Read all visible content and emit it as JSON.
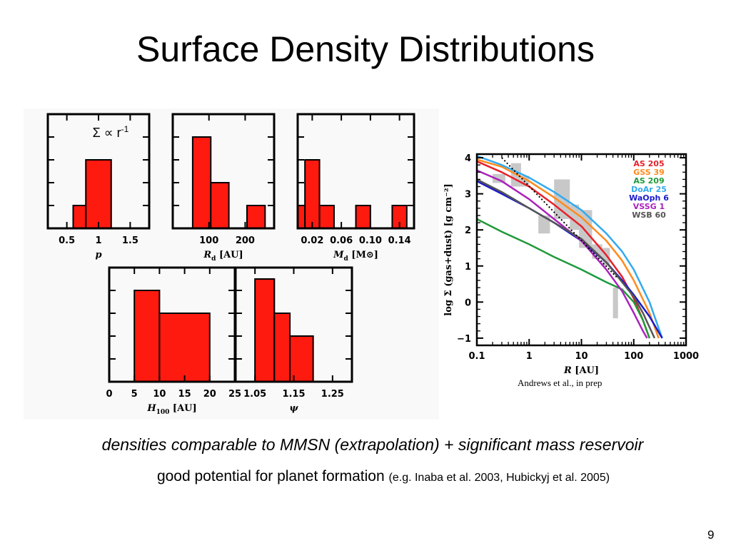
{
  "slide": {
    "title": "Surface Density Distributions",
    "caption": "Andrews et al., in prep",
    "line1": "densities comparable to MMSN (extrapolation) + significant mass reservoir",
    "line2_main": "good potential for planet formation",
    "line2_ref": "(e.g. Inaba et al. 2003, Hubickyj et al. 2005)",
    "page_number": "9"
  },
  "colors": {
    "hist_fill": "#ff1a10",
    "frame": "#000000",
    "shaded": "#c8c8c8"
  },
  "chart_data": [
    {
      "type": "bar",
      "subplot": "p",
      "annotation": "Σ ∝ r<sup>-1</sup>",
      "xlabel": "p",
      "xlim": [
        0.2,
        1.8
      ],
      "ylim": [
        0,
        5
      ],
      "xticks": [
        0.5,
        1,
        1.5
      ],
      "xtick_labels": [
        "0.5",
        "1",
        "1.5"
      ],
      "bins": [
        [
          0.6,
          0.8,
          1
        ],
        [
          0.8,
          1.2,
          3
        ]
      ]
    },
    {
      "type": "bar",
      "subplot": "Rd",
      "xlabel": "R_d [AU]",
      "xlabel_parts": [
        "R",
        "d",
        " [AU]"
      ],
      "xlim": [
        0,
        280
      ],
      "ylim": [
        0,
        5
      ],
      "xticks": [
        100,
        200
      ],
      "xtick_labels": [
        "100",
        "200"
      ],
      "bins": [
        [
          55,
          105,
          4
        ],
        [
          105,
          155,
          2
        ],
        [
          205,
          255,
          1
        ]
      ]
    },
    {
      "type": "bar",
      "subplot": "Md",
      "xlabel": "M_d [M⊙]",
      "xlabel_parts": [
        "M",
        "d",
        " [M⊙]"
      ],
      "xlim": [
        0,
        0.16
      ],
      "ylim": [
        0,
        5
      ],
      "xticks": [
        0.02,
        0.06,
        0.1,
        0.14
      ],
      "xtick_labels": [
        "0.02",
        "0.06",
        "0.10",
        "0.14"
      ],
      "bins": [
        [
          0.0,
          0.01,
          1
        ],
        [
          0.01,
          0.03,
          3
        ],
        [
          0.03,
          0.05,
          1
        ],
        [
          0.08,
          0.1,
          1
        ],
        [
          0.13,
          0.15,
          1
        ]
      ]
    },
    {
      "type": "bar",
      "subplot": "H100",
      "xlabel": "H_100 [AU]",
      "xlabel_parts": [
        "H",
        "100",
        " [AU]"
      ],
      "xlim": [
        0,
        25
      ],
      "ylim": [
        0,
        5
      ],
      "xticks": [
        0,
        5,
        10,
        15,
        20,
        25
      ],
      "xtick_labels": [
        "0",
        "5",
        "10",
        "15",
        "20",
        "25"
      ],
      "bins": [
        [
          5,
          10,
          4
        ],
        [
          10,
          20,
          3
        ]
      ]
    },
    {
      "type": "bar",
      "subplot": "psi",
      "xlabel": "ψ",
      "xlim": [
        1.0,
        1.3
      ],
      "ylim": [
        0,
        5
      ],
      "xticks": [
        1.05,
        1.15,
        1.25
      ],
      "xtick_labels": [
        "1.05",
        "1.15",
        "1.25"
      ],
      "bins": [
        [
          1.05,
          1.1,
          4.5
        ],
        [
          1.1,
          1.14,
          3
        ],
        [
          1.14,
          1.2,
          2
        ]
      ]
    },
    {
      "type": "line",
      "subplot": "profiles",
      "xlabel": "R [AU]",
      "xlabel_parts": [
        "R",
        " [AU]"
      ],
      "ylabel": "log Σ (gas+dust) [g cm⁻²]",
      "x_scale": "log",
      "xlim": [
        0.1,
        1000
      ],
      "ylim": [
        -1.2,
        4.1
      ],
      "xticks": [
        0.1,
        1,
        10,
        100,
        1000
      ],
      "xtick_labels": [
        "0.1",
        "1",
        "10",
        "100",
        "1000"
      ],
      "yticks": [
        -1,
        0,
        1,
        2,
        3,
        4
      ],
      "ytick_labels": [
        "−1",
        "0",
        "1",
        "2",
        "3",
        "4"
      ],
      "legend_position": "top-right",
      "series": [
        {
          "name": "AS 205",
          "color": "#e8202a",
          "x": [
            0.1,
            0.3,
            1,
            3,
            10,
            30,
            60,
            100,
            150,
            200
          ],
          "y": [
            3.9,
            3.6,
            3.2,
            2.7,
            2.1,
            1.3,
            0.7,
            0.1,
            -0.5,
            -1.0
          ]
        },
        {
          "name": "GSS 39",
          "color": "#ff8a1e",
          "x": [
            0.1,
            0.3,
            1,
            3,
            10,
            30,
            60,
            100,
            200,
            300
          ],
          "y": [
            3.95,
            3.75,
            3.35,
            2.9,
            2.35,
            1.7,
            1.15,
            0.6,
            -0.3,
            -1.0
          ]
        },
        {
          "name": "AS 209",
          "color": "#1e9a3a",
          "x": [
            0.1,
            0.3,
            1,
            3,
            10,
            30,
            60,
            100,
            150,
            200
          ],
          "y": [
            2.3,
            1.95,
            1.6,
            1.25,
            0.9,
            0.55,
            0.35,
            0.0,
            -0.5,
            -1.0
          ]
        },
        {
          "name": "DoAr 25",
          "color": "#33aaee",
          "x": [
            0.1,
            0.3,
            1,
            3,
            10,
            30,
            60,
            100,
            200,
            350
          ],
          "y": [
            4.05,
            3.8,
            3.45,
            3.05,
            2.55,
            1.9,
            1.4,
            0.9,
            0.0,
            -1.0
          ]
        },
        {
          "name": "WaOph 6",
          "color": "#1a1acc",
          "x": [
            0.1,
            0.3,
            1,
            3,
            10,
            30,
            60,
            100,
            200,
            350
          ],
          "y": [
            3.35,
            3.0,
            2.6,
            2.2,
            1.7,
            1.1,
            0.6,
            0.2,
            -0.4,
            -1.0
          ]
        },
        {
          "name": "VSSG 1",
          "color": "#aa22bb",
          "x": [
            0.1,
            0.3,
            1,
            3,
            10,
            30,
            60,
            100,
            150,
            180
          ],
          "y": [
            3.65,
            3.35,
            2.85,
            2.3,
            1.7,
            0.9,
            0.3,
            -0.3,
            -0.8,
            -1.0
          ]
        },
        {
          "name": "WSB 60",
          "color": "#555555",
          "x": [
            0.1,
            0.3,
            1,
            3,
            10,
            30,
            60,
            100,
            150,
            250
          ],
          "y": [
            3.4,
            3.05,
            2.6,
            2.2,
            1.75,
            1.1,
            0.55,
            0.15,
            -0.3,
            -1.0
          ]
        }
      ],
      "mmsn_reference": {
        "style": "dotted",
        "x": [
          0.3,
          50
        ],
        "y": [
          4.0,
          0.65
        ]
      },
      "shaded_histogram": [
        {
          "x": [
            0.2,
            0.35
          ],
          "y": [
            3.3,
            3.55
          ]
        },
        {
          "x": [
            0.45,
            0.7
          ],
          "y": [
            3.2,
            3.85
          ]
        },
        {
          "x": [
            0.7,
            1.0
          ],
          "y": [
            3.2,
            3.5
          ]
        },
        {
          "x": [
            1.5,
            2.5
          ],
          "y": [
            1.9,
            2.4
          ]
        },
        {
          "x": [
            3.0,
            6.0
          ],
          "y": [
            2.3,
            3.4
          ]
        },
        {
          "x": [
            6.0,
            9.0
          ],
          "y": [
            2.0,
            2.7
          ]
        },
        {
          "x": [
            9.0,
            16.0
          ],
          "y": [
            1.5,
            2.55
          ]
        },
        {
          "x": [
            16.0,
            25.0
          ],
          "y": [
            1.2,
            1.6
          ]
        },
        {
          "x": [
            25.0,
            35.0
          ],
          "y": [
            1.0,
            1.5
          ]
        },
        {
          "x": [
            40.0,
            50.0
          ],
          "y": [
            -0.45,
            0.4
          ]
        }
      ]
    }
  ]
}
